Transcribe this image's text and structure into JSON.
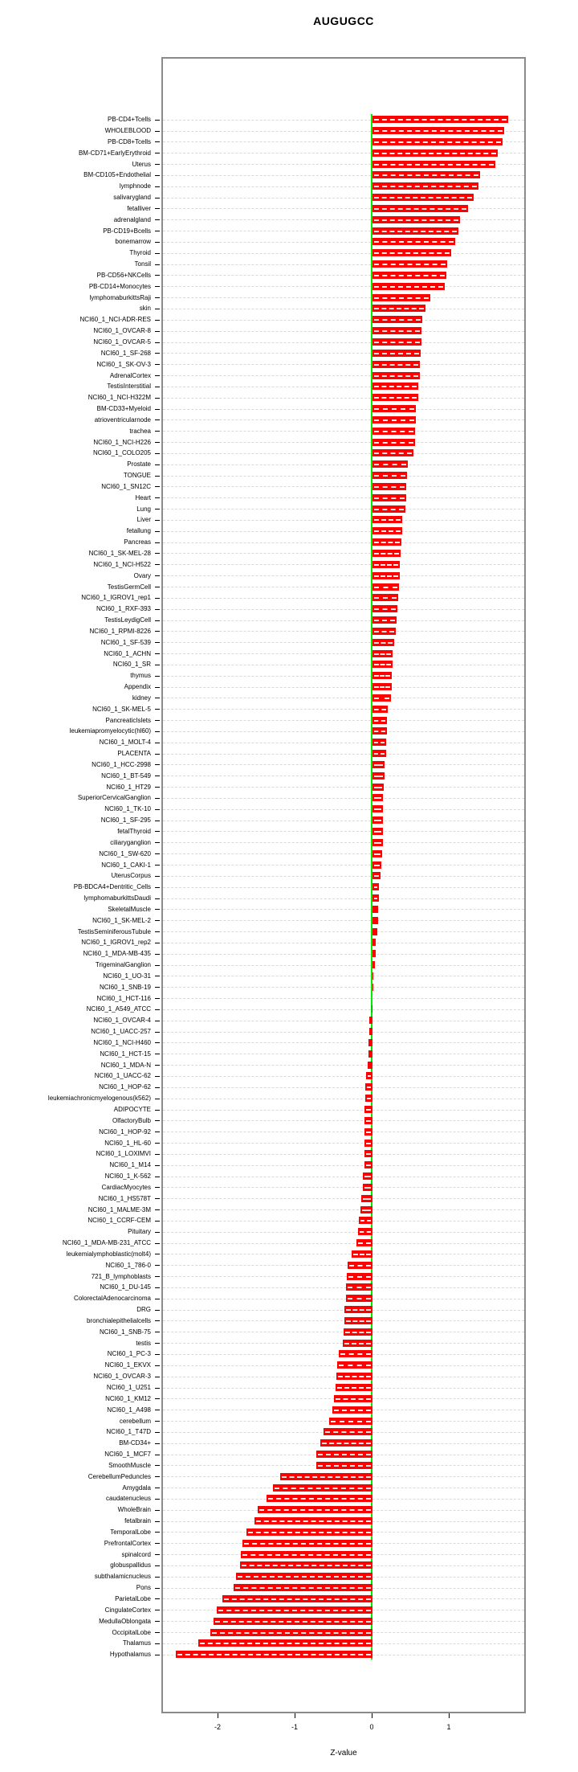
{
  "chart_data": {
    "type": "bar",
    "orientation": "horizontal",
    "title": "AUGUGCC",
    "xlabel": "Z-value",
    "x_ticks": [
      -2,
      -1,
      0,
      1
    ],
    "xlim": [
      -2.73,
      2.0
    ],
    "grid": true,
    "legend": false,
    "bar_color": "#FF0000",
    "zero_line_color": "#00EE00",
    "categories": [
      "PB-CD4+Tcells",
      "WHOLEBLOOD",
      "PB-CD8+Tcells",
      "BM-CD71+EarlyErythroid",
      "Uterus",
      "BM-CD105+Endothelial",
      "lymphnode",
      "salivarygland",
      "fetalliver",
      "adrenalgland",
      "PB-CD19+Bcells",
      "bonemarrow",
      "Thyroid",
      "Tonsil",
      "PB-CD56+NKCells",
      "PB-CD14+Monocytes",
      "lymphomaburkittsRaji",
      "skin",
      "NCI60_1_NCI-ADR-RES",
      "NCI60_1_OVCAR-8",
      "NCI60_1_OVCAR-5",
      "NCI60_1_SF-268",
      "NCI60_1_SK-OV-3",
      "AdrenalCortex",
      "TestisInterstitial",
      "NCI60_1_NCI-H322M",
      "BM-CD33+Myeloid",
      "atrioventricularnode",
      "trachea",
      "NCI60_1_NCI-H226",
      "NCI60_1_COLO205",
      "Prostate",
      "TONGUE",
      "NCI60_1_SN12C",
      "Heart",
      "Lung",
      "Liver",
      "fetallung",
      "Pancreas",
      "NCI60_1_SK-MEL-28",
      "NCI60_1_NCI-H522",
      "Ovary",
      "TestisGermCell",
      "NCI60_1_IGROV1_rep1",
      "NCI60_1_RXF-393",
      "TestisLeydigCell",
      "NCI60_1_RPMI-8226",
      "NCI60_1_SF-539",
      "NCI60_1_ACHN",
      "NCI60_1_SR",
      "thymus",
      "Appendix",
      "kidney",
      "NCI60_1_SK-MEL-5",
      "PancreaticIslets",
      "leukemiapromyelocytic(hl60)",
      "NCI60_1_MOLT-4",
      "PLACENTA",
      "NCI60_1_HCC-2998",
      "NCI60_1_BT-549",
      "NCI60_1_HT29",
      "SuperiorCervicalGanglion",
      "NCI60_1_TK-10",
      "NCI60_1_SF-295",
      "fetalThyroid",
      "ciliaryganglion",
      "NCI60_1_SW-620",
      "NCI60_1_CAKI-1",
      "UterusCorpus",
      "PB-BDCA4+Dentritic_Cells",
      "lymphomaburkittsDaudi",
      "SkeletalMuscle",
      "NCI60_1_SK-MEL-2",
      "TestisSeminiferousTubule",
      "NCI60_1_IGROV1_rep2",
      "NCI60_1_MDA-MB-435",
      "TrigeminalGanglion",
      "NCI60_1_UO-31",
      "NCI60_1_SNB-19",
      "NCI60_1_HCT-116",
      "NCI60_1_A549_ATCC",
      "NCI60_1_OVCAR-4",
      "NCI60_1_UACC-257",
      "NCI60_1_NCI-H460",
      "NCI60_1_HCT-15",
      "NCI60_1_MDA-N",
      "NCI60_1_UACC-62",
      "NCI60_1_HOP-62",
      "leukemiachronicmyelogenous(k562)",
      "ADIPOCYTE",
      "OlfactoryBulb",
      "NCI60_1_HOP-92",
      "NCI60_1_HL-60",
      "NCI60_1_LOXIMVI",
      "NCI60_1_M14",
      "NCI60_1_K-562",
      "CardiacMyocytes",
      "NCI60_1_HS578T",
      "NCI60_1_MALME-3M",
      "NCI60_1_CCRF-CEM",
      "Pituitary",
      "NCI60_1_MDA-MB-231_ATCC",
      "leukemialymphoblastic(molt4)",
      "NCI60_1_786-0",
      "721_B_lymphoblasts",
      "NCI60_1_DU-145",
      "ColorectalAdenocarcinoma",
      "DRG",
      "bronchialepithelialcells",
      "NCI60_1_SNB-75",
      "testis",
      "NCI60_1_PC-3",
      "NCI60_1_EKVX",
      "NCI60_1_OVCAR-3",
      "NCI60_1_U251",
      "NCI60_1_KM12",
      "NCI60_1_A498",
      "cerebellum",
      "NCI60_1_T47D",
      "BM-CD34+",
      "NCI60_1_MCF7",
      "SmoothMuscle",
      "CerebellumPeduncles",
      "Amygdala",
      "caudatenucleus",
      "WholeBrain",
      "fetalbrain",
      "TemporalLobe",
      "PrefrontalCortex",
      "spinalcord",
      "globuspallidus",
      "subthalamicnucleus",
      "Pons",
      "ParietalLobe",
      "CingulateCortex",
      "MedullaOblongata",
      "OccipitalLobe",
      "Thalamus",
      "Hypothalamus"
    ],
    "values": [
      1.76,
      1.71,
      1.69,
      1.63,
      1.6,
      1.4,
      1.38,
      1.31,
      1.24,
      1.14,
      1.12,
      1.07,
      1.02,
      0.97,
      0.96,
      0.94,
      0.75,
      0.69,
      0.65,
      0.64,
      0.64,
      0.63,
      0.62,
      0.62,
      0.59,
      0.59,
      0.56,
      0.56,
      0.55,
      0.55,
      0.53,
      0.46,
      0.45,
      0.44,
      0.44,
      0.43,
      0.39,
      0.39,
      0.38,
      0.37,
      0.35,
      0.35,
      0.34,
      0.33,
      0.32,
      0.31,
      0.3,
      0.28,
      0.26,
      0.26,
      0.25,
      0.25,
      0.24,
      0.2,
      0.19,
      0.19,
      0.18,
      0.18,
      0.16,
      0.16,
      0.15,
      0.14,
      0.14,
      0.13,
      0.13,
      0.13,
      0.12,
      0.11,
      0.1,
      0.08,
      0.08,
      0.07,
      0.07,
      0.06,
      0.04,
      0.04,
      0.03,
      0.01,
      0.01,
      0.0,
      -0.01,
      -0.04,
      -0.04,
      -0.05,
      -0.05,
      -0.06,
      -0.08,
      -0.09,
      -0.09,
      -0.1,
      -0.1,
      -0.1,
      -0.11,
      -0.11,
      -0.11,
      -0.13,
      -0.13,
      -0.15,
      -0.16,
      -0.18,
      -0.19,
      -0.21,
      -0.27,
      -0.32,
      -0.33,
      -0.34,
      -0.34,
      -0.37,
      -0.37,
      -0.38,
      -0.39,
      -0.44,
      -0.46,
      -0.47,
      -0.48,
      -0.5,
      -0.52,
      -0.56,
      -0.64,
      -0.68,
      -0.73,
      -0.73,
      -1.2,
      -1.3,
      -1.38,
      -1.49,
      -1.53,
      -1.64,
      -1.69,
      -1.71,
      -1.72,
      -1.78,
      -1.81,
      -1.95,
      -2.03,
      -2.07,
      -2.11,
      -2.27,
      -2.56
    ]
  }
}
